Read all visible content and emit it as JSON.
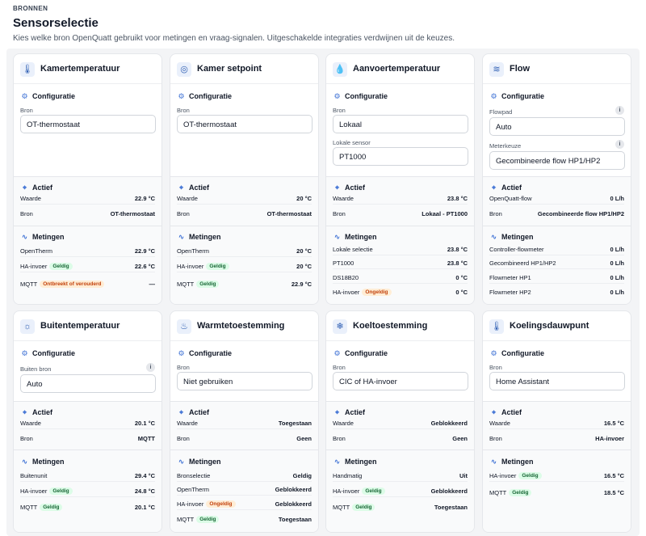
{
  "header": {
    "kicker": "BRONNEN",
    "title": "Sensorselectie",
    "subtitle": "Kies welke bron OpenQuatt gebruikt voor metingen en vraag-signalen. Uitgeschakelde integraties verdwijnen uit de keuzes."
  },
  "sections": {
    "config": "Configuratie",
    "active": "Actief",
    "measurements": "Metingen"
  },
  "labels": {
    "bron": "Bron",
    "waarde": "Waarde",
    "lokale_sensor": "Lokale sensor",
    "flowpad": "Flowpad",
    "meterkeuze": "Meterkeuze",
    "buiten_bron": "Buiten bron",
    "openquatt_flow": "OpenQuatt-flow"
  },
  "badges": {
    "geldig": "Geldig",
    "ongeldig": "Ongeldig",
    "ontbreekt": "Ontbreekt of verouderd"
  },
  "cards": [
    {
      "title": "Kamertemperatuur",
      "icon": "thermometer-icon",
      "field1_value": "OT-thermostaat",
      "active": {
        "value": "22.9 °C",
        "source": "OT-thermostaat"
      },
      "measurements": [
        {
          "label": "OpenTherm",
          "value": "22.9 °C"
        },
        {
          "label": "HA-invoer",
          "value": "22.6 °C"
        },
        {
          "label": "MQTT",
          "value": "—"
        }
      ]
    },
    {
      "title": "Kamer setpoint",
      "icon": "target-icon",
      "field1_value": "OT-thermostaat",
      "active": {
        "value": "20 °C",
        "source": "OT-thermostaat"
      },
      "measurements": [
        {
          "label": "OpenTherm",
          "value": "20 °C"
        },
        {
          "label": "HA-invoer",
          "value": "20 °C"
        },
        {
          "label": "MQTT",
          "value": "22.9 °C"
        }
      ]
    },
    {
      "title": "Aanvoertemperatuur",
      "icon": "droplet-icon",
      "field1_value": "Lokaal",
      "field2_value": "PT1000",
      "active": {
        "value": "23.8 °C",
        "source": "Lokaal - PT1000"
      },
      "measurements": [
        {
          "label": "Lokale selectie",
          "value": "23.8 °C"
        },
        {
          "label": "PT1000",
          "value": "23.8 °C"
        },
        {
          "label": "DS18B20",
          "value": "0 °C"
        },
        {
          "label": "HA-invoer",
          "value": "0 °C"
        }
      ]
    },
    {
      "title": "Flow",
      "icon": "flow-waves-icon",
      "field1_value": "Auto",
      "field2_value": "Gecombineerde flow HP1/HP2",
      "active": {
        "value": "0 L/h",
        "source": "Gecombineerde flow HP1/HP2"
      },
      "measurements": [
        {
          "label": "Controller-flowmeter",
          "value": "0 L/h"
        },
        {
          "label": "Gecombineerd HP1/HP2",
          "value": "0 L/h"
        },
        {
          "label": "Flowmeter HP1",
          "value": "0 L/h"
        },
        {
          "label": "Flowmeter HP2",
          "value": "0 L/h"
        }
      ]
    },
    {
      "title": "Buitentemperatuur",
      "icon": "sun-icon",
      "field1_value": "Auto",
      "active": {
        "value": "20.1 °C",
        "source": "MQTT"
      },
      "measurements": [
        {
          "label": "Buitenunit",
          "value": "29.4 °C"
        },
        {
          "label": "HA-invoer",
          "value": "24.8 °C"
        },
        {
          "label": "MQTT",
          "value": "20.1 °C"
        }
      ]
    },
    {
      "title": "Warmtetoestemming",
      "icon": "flame-icon",
      "field1_value": "Niet gebruiken",
      "active": {
        "value": "Toegestaan",
        "source": "Geen"
      },
      "measurements": [
        {
          "label": "Bronselectie",
          "value": "Geldig"
        },
        {
          "label": "OpenTherm",
          "value": "Geblokkeerd"
        },
        {
          "label": "HA-invoer",
          "value": "Geblokkeerd"
        },
        {
          "label": "MQTT",
          "value": "Toegestaan"
        }
      ]
    },
    {
      "title": "Koeltoestemming",
      "icon": "snowflake-icon",
      "field1_value": "CIC of HA-invoer",
      "active": {
        "value": "Geblokkeerd",
        "source": "Geen"
      },
      "measurements": [
        {
          "label": "Handmatig",
          "value": "Uit"
        },
        {
          "label": "HA-invoer",
          "value": "Geblokkeerd"
        },
        {
          "label": "MQTT",
          "value": "Toegestaan"
        }
      ]
    },
    {
      "title": "Koelingsdauwpunt",
      "icon": "thermometer-icon",
      "field1_value": "Home Assistant",
      "active": {
        "value": "16.5 °C",
        "source": "HA-invoer"
      },
      "measurements": [
        {
          "label": "HA-invoer",
          "value": "16.5 °C"
        },
        {
          "label": "MQTT",
          "value": "18.5 °C"
        }
      ]
    }
  ]
}
